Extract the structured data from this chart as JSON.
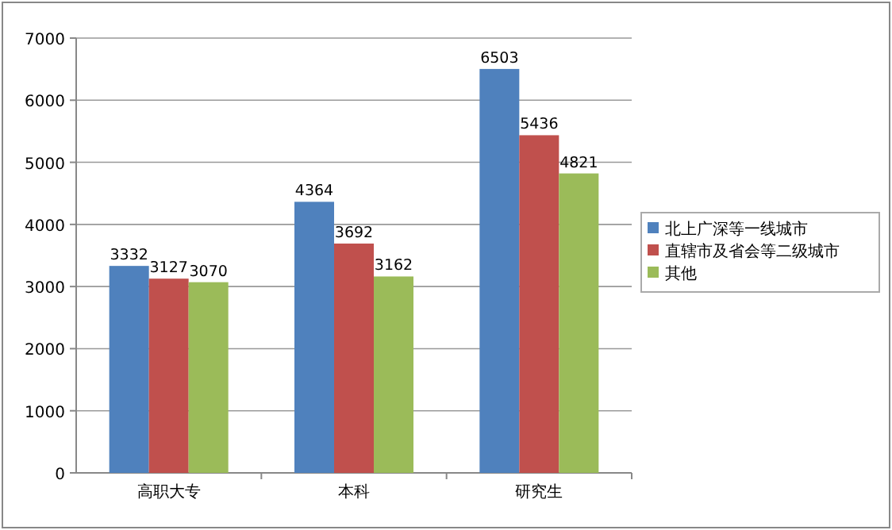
{
  "chart_data": {
    "type": "bar",
    "categories": [
      "高职大专",
      "本科",
      "研究生"
    ],
    "series": [
      {
        "name": "北上广深等一线城市",
        "color": "#4f81bd",
        "values": [
          3332,
          4364,
          6503
        ]
      },
      {
        "name": "直辖市及省会等二级城市",
        "color": "#c0504d",
        "values": [
          3127,
          3692,
          5436
        ]
      },
      {
        "name": "其他",
        "color": "#9bbb59",
        "values": [
          3070,
          3162,
          4821
        ]
      }
    ],
    "ylim": [
      0,
      7000
    ],
    "yticks": [
      0,
      1000,
      2000,
      3000,
      4000,
      5000,
      6000,
      7000
    ],
    "grid": "y",
    "legend": "right",
    "data_labels": true
  }
}
